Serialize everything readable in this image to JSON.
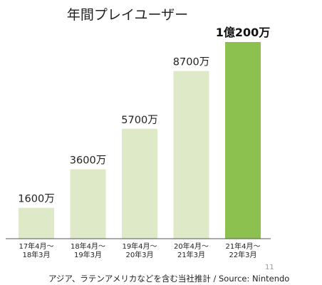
{
  "chart_data": {
    "type": "bar",
    "title": "年間プレイユーザー",
    "categories": [
      [
        "17年4月～",
        "18年3月"
      ],
      [
        "18年4月～",
        "19年3月"
      ],
      [
        "19年4月～",
        "20年3月"
      ],
      [
        "20年4月～",
        "21年3月"
      ],
      [
        "21年4月～",
        "22年3月"
      ]
    ],
    "values": [
      16000000,
      36000000,
      57000000,
      87000000,
      102000000
    ],
    "data_labels": [
      "1600万",
      "3600万",
      "5700万",
      "8700万",
      "1億200万"
    ],
    "highlight_index": 4,
    "ylim": [
      0,
      102000000
    ],
    "grid": false,
    "legend": false
  },
  "colors": {
    "bar": "#deeac7",
    "bar_highlight": "#8cc04f",
    "axis": "#555555"
  },
  "footer": {
    "source": "アジア、ラテンアメリカなどを含む当社推計 / Source: Nintendo",
    "page_number": "11"
  }
}
